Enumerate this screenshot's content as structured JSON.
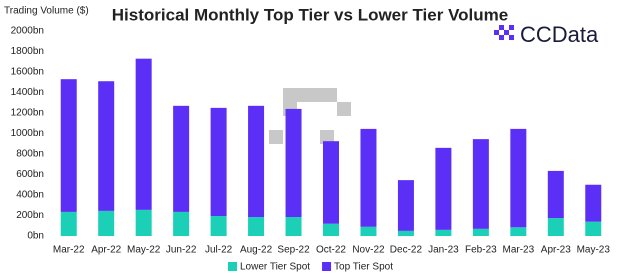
{
  "chart_data": {
    "type": "stacked-bar",
    "title": "Historical Monthly Top Tier vs Lower Tier Volume",
    "y_label": "Trading Volume ($)",
    "logo": "CCData",
    "categories": [
      "Mar-22",
      "Apr-22",
      "May-22",
      "Jun-22",
      "Jul-22",
      "Aug-22",
      "Sep-22",
      "Oct-22",
      "Nov-22",
      "Dec-22",
      "Jan-23",
      "Feb-23",
      "Mar-23",
      "Apr-23",
      "May-23"
    ],
    "series": [
      {
        "name": "Lower Tier Spot",
        "color": "#1ccfb7",
        "values": [
          235,
          245,
          255,
          235,
          195,
          185,
          185,
          120,
          90,
          50,
          60,
          70,
          85,
          175,
          140
        ]
      },
      {
        "name": "Top Tier Spot",
        "color": "#5b2ff5",
        "values": [
          1295,
          1265,
          1475,
          1035,
          1055,
          1085,
          1055,
          805,
          955,
          495,
          800,
          875,
          960,
          460,
          360
        ]
      }
    ],
    "ylim": [
      0,
      2000
    ],
    "yticks": [
      {
        "value": 0,
        "label": "0bn"
      },
      {
        "value": 200,
        "label": "200bn"
      },
      {
        "value": 400,
        "label": "400bn"
      },
      {
        "value": 600,
        "label": "600bn"
      },
      {
        "value": 800,
        "label": "800bn"
      },
      {
        "value": 1000,
        "label": "1000bn"
      },
      {
        "value": 1200,
        "label": "1200bn"
      },
      {
        "value": 1400,
        "label": "1400bn"
      },
      {
        "value": 1600,
        "label": "1600bn"
      },
      {
        "value": 1800,
        "label": "1800bn"
      },
      {
        "value": 2000,
        "label": "2000bn"
      }
    ],
    "grid": false,
    "legend": "bottom"
  }
}
